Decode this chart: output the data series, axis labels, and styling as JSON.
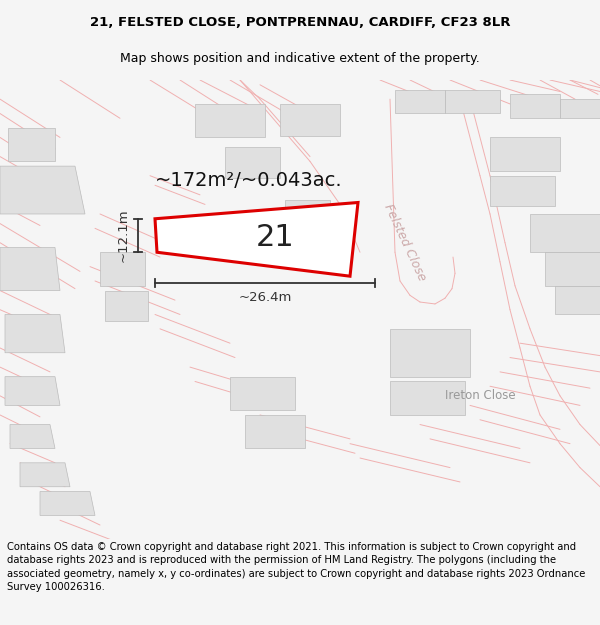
{
  "title_line1": "21, FELSTED CLOSE, PONTPRENNAU, CARDIFF, CF23 8LR",
  "title_line2": "Map shows position and indicative extent of the property.",
  "footer_text": "Contains OS data © Crown copyright and database right 2021. This information is subject to Crown copyright and database rights 2023 and is reproduced with the permission of HM Land Registry. The polygons (including the associated geometry, namely x, y co-ordinates) are subject to Crown copyright and database rights 2023 Ordnance Survey 100026316.",
  "area_label": "~172m²/~0.043ac.",
  "number_label": "21",
  "dim_width": "~26.4m",
  "dim_height": "~12.1m",
  "bg_color": "#f5f5f5",
  "map_bg": "#ffffff",
  "plot_color": "#dd0000",
  "road_line_color": "#f0b0b0",
  "road_outline_color": "#e8a8a8",
  "building_color": "#e0e0e0",
  "building_edge": "#bbbbbb",
  "felsted_label_color": "#ccaaaa",
  "ireton_label_color": "#999999",
  "dim_color": "#333333",
  "title_fontsize": 9.5,
  "subtitle_fontsize": 9.0,
  "footer_fontsize": 7.2,
  "area_fontsize": 14,
  "number_fontsize": 22,
  "dim_fontsize": 9.5
}
